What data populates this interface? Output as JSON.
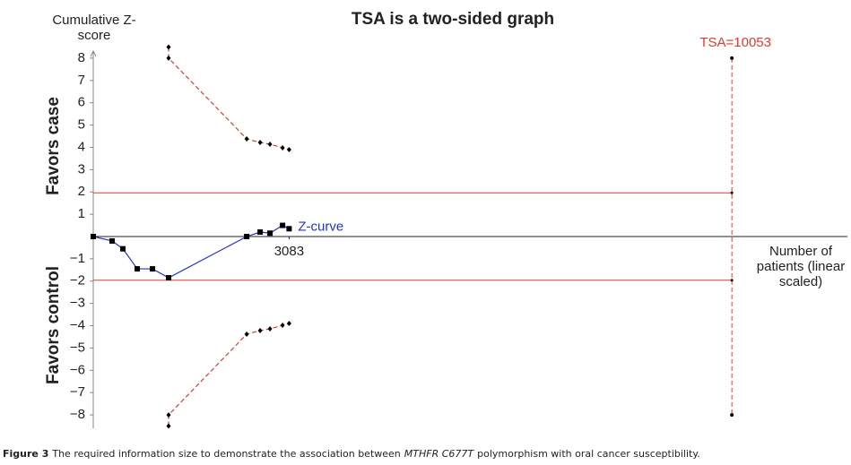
{
  "chart_data": {
    "type": "line",
    "title": "TSA is a two-sided graph",
    "ylabel": "Cumulative Z-score",
    "xlabel": "Number of patients (linear scaled)",
    "region_labels": [
      "Favors case",
      "Favors control"
    ],
    "xlim": [
      0,
      11900
    ],
    "ylim": [
      -8.6,
      8.6
    ],
    "xticks": [
      3083
    ],
    "yticks": [
      8,
      7,
      6,
      5,
      4,
      3,
      2,
      1,
      {
        "value": -1,
        "label": "−1"
      },
      {
        "value": -2,
        "label": "−2"
      },
      {
        "value": -3,
        "label": "−3"
      },
      {
        "value": -4,
        "label": "−4"
      },
      {
        "value": -5,
        "label": "−5"
      },
      {
        "value": -6,
        "label": "−6"
      },
      {
        "value": -7,
        "label": "−7"
      },
      {
        "value": -8,
        "label": "−8"
      }
    ],
    "series": [
      {
        "name": "Z-curve",
        "color": "#2233cc",
        "style": "solid",
        "x": [
          0,
          297,
          466,
          692,
          932,
          1186,
          2415,
          2627,
          2782,
          2980,
          3083
        ],
        "values": [
          0,
          -0.2,
          -0.55,
          -1.45,
          -1.45,
          -1.85,
          0,
          0.2,
          0.15,
          0.5,
          0.35
        ]
      },
      {
        "color": "#e03a2e",
        "style": "dashed",
        "x": [
          1186,
          1186,
          2415,
          2627,
          2782,
          2980,
          3083
        ],
        "values": [
          8.5,
          8,
          4.38,
          4.22,
          4.14,
          3.98,
          3.9
        ]
      },
      {
        "color": "#e03a2e",
        "style": "dashed",
        "x": [
          1186,
          1186,
          2415,
          2627,
          2782,
          2980,
          3083
        ],
        "values": [
          -8.5,
          -8,
          -4.38,
          -4.22,
          -4.14,
          -3.98,
          -3.9
        ]
      }
    ],
    "conventional_boundaries": {
      "color": "#e03a2e",
      "values": [
        1.96,
        -1.96
      ]
    },
    "tsa": {
      "label": "TSA=10053",
      "x": 10053,
      "ymin": -8,
      "ymax": 8,
      "color": "#e03a2e"
    }
  },
  "caption": {
    "label": "Figure 3",
    "text_before": "The required information size to demonstrate the association between",
    "gene": "MTHFR C677T",
    "text_after": "polymorphism with oral cancer susceptibility."
  }
}
